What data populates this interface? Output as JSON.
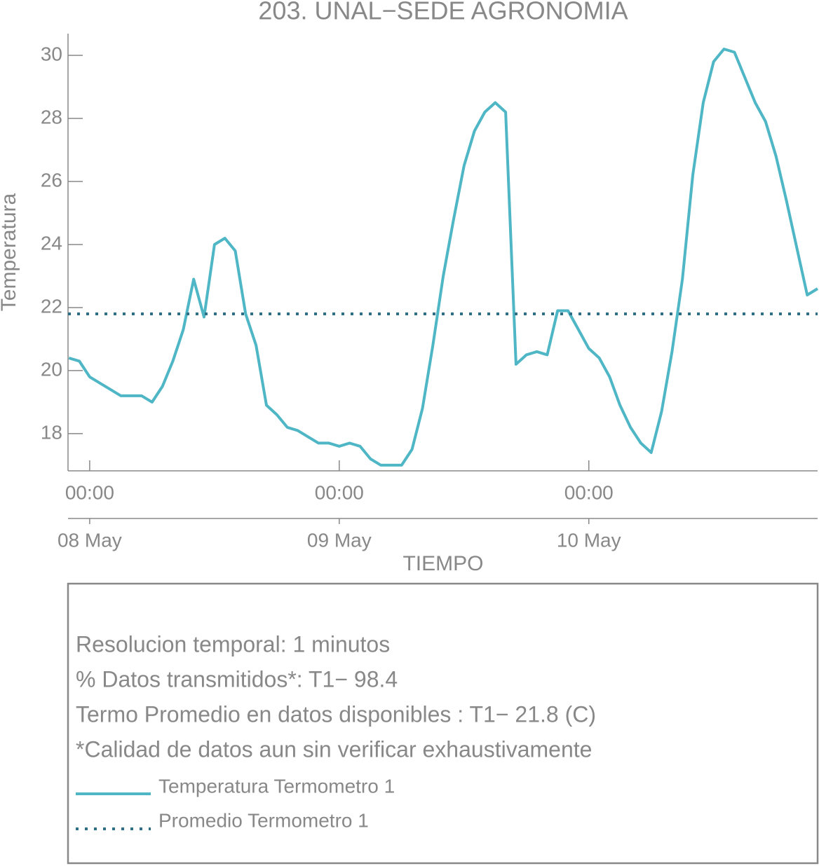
{
  "chart_data": {
    "type": "line",
    "title": "203. UNAL−SEDE AGRONOMIA",
    "x_label": "TIEMPO",
    "y_label": "Temperatura",
    "x": [
      "07 May 22:00",
      "07 May 23:00",
      "08 May 00:00",
      "08 May 01:00",
      "08 May 02:00",
      "08 May 03:00",
      "08 May 04:00",
      "08 May 05:00",
      "08 May 06:00",
      "08 May 07:00",
      "08 May 08:00",
      "08 May 09:00",
      "08 May 10:00",
      "08 May 11:00",
      "08 May 12:00",
      "08 May 13:00",
      "08 May 14:00",
      "08 May 15:00",
      "08 May 16:00",
      "08 May 17:00",
      "08 May 18:00",
      "08 May 19:00",
      "08 May 20:00",
      "08 May 21:00",
      "08 May 22:00",
      "08 May 23:00",
      "09 May 00:00",
      "09 May 01:00",
      "09 May 02:00",
      "09 May 03:00",
      "09 May 04:00",
      "09 May 05:00",
      "09 May 06:00",
      "09 May 07:00",
      "09 May 08:00",
      "09 May 09:00",
      "09 May 10:00",
      "09 May 11:00",
      "09 May 12:00",
      "09 May 13:00",
      "09 May 14:00",
      "09 May 15:00",
      "09 May 16:00",
      "09 May 17:00",
      "09 May 18:00",
      "09 May 19:00",
      "09 May 20:00",
      "09 May 21:00",
      "09 May 22:00",
      "09 May 23:00",
      "10 May 00:00",
      "10 May 01:00",
      "10 May 02:00",
      "10 May 03:00",
      "10 May 04:00",
      "10 May 05:00",
      "10 May 06:00",
      "10 May 07:00",
      "10 May 08:00",
      "10 May 09:00",
      "10 May 10:00",
      "10 May 11:00",
      "10 May 12:00",
      "10 May 13:00",
      "10 May 14:00",
      "10 May 15:00",
      "10 May 16:00",
      "10 May 17:00",
      "10 May 18:00",
      "10 May 19:00",
      "10 May 20:00",
      "10 May 21:00",
      "10 May 22:00"
    ],
    "series": [
      {
        "name": "Temperatura Termometro 1",
        "color": "#4fb6c6",
        "values": [
          20.4,
          20.3,
          19.8,
          19.6,
          19.4,
          19.2,
          19.2,
          19.2,
          19.0,
          19.5,
          20.3,
          21.3,
          22.9,
          21.7,
          24.0,
          24.2,
          23.8,
          21.8,
          20.8,
          18.9,
          18.6,
          18.2,
          18.1,
          17.9,
          17.7,
          17.7,
          17.6,
          17.7,
          17.6,
          17.2,
          17.0,
          17.0,
          17.0,
          17.5,
          18.8,
          20.8,
          23.0,
          24.8,
          26.5,
          27.6,
          28.2,
          28.5,
          28.2,
          20.2,
          20.5,
          20.6,
          20.5,
          21.9,
          21.9,
          21.3,
          20.7,
          20.4,
          19.8,
          18.9,
          18.2,
          17.7,
          17.4,
          18.7,
          20.6,
          22.9,
          26.2,
          28.5,
          29.8,
          30.2,
          30.1,
          29.3,
          28.5,
          27.9,
          26.8,
          25.4,
          23.9,
          22.4,
          22.6
        ]
      }
    ],
    "average": {
      "name": "Promedio Termometro 1",
      "color": "#2e6f86",
      "value": 21.8
    },
    "xlim": [
      "07 May 21:55",
      "10 May 22:00"
    ],
    "ylim": [
      16.82,
      30.69
    ],
    "yticks": [
      18,
      20,
      22,
      24,
      26,
      28,
      30
    ],
    "xticks": [
      {
        "value": "08 May 00:00",
        "label": "00:00"
      },
      {
        "value": "09 May 00:00",
        "label": "00:00"
      },
      {
        "value": "10 May 00:00",
        "label": "00:00"
      }
    ],
    "xticks_dates": [
      {
        "value": "08 May 00:00",
        "label": "08 May"
      },
      {
        "value": "09 May 00:00",
        "label": "09 May"
      },
      {
        "value": "10 May 00:00",
        "label": "10 May"
      }
    ],
    "notes": [
      "Resolucion temporal: 1 minutos",
      "% Datos transmitidos*: T1− 98.4",
      "Termo Promedio en datos disponibles : T1− 21.8 (C)",
      "*Calidad de datos aun sin verificar exhaustivamente"
    ]
  }
}
